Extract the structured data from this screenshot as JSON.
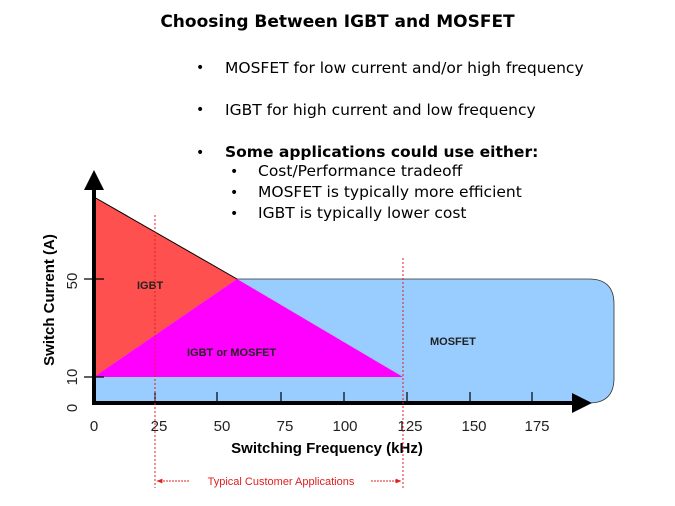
{
  "slide": {
    "title": "Choosing Between IGBT and MOSFET",
    "bullets": [
      "MOSFET for low current and/or high frequency",
      "IGBT for high current and low frequency",
      "Some applications could use either:"
    ],
    "sub_bullets": [
      "Cost/Performance tradeoff",
      "MOSFET is typically more efficient",
      "IGBT is typically lower cost"
    ],
    "bullet_glyph": "•"
  },
  "diagram": {
    "xlabel": "Switching Frequency (kHz)",
    "ylabel": "Switch Current (A)",
    "x_ticks": [
      "0",
      "25",
      "50",
      "75",
      "100",
      "125",
      "150",
      "175"
    ],
    "y_ticks": [
      "0",
      "10",
      "50"
    ],
    "regions": {
      "igbt": {
        "label": "IGBT",
        "color": "#ff5050"
      },
      "both": {
        "label": "IGBT or MOSFET",
        "color": "#ff00ff"
      },
      "mosfet": {
        "label": "MOSFET",
        "color": "#99ccff"
      }
    },
    "range_annotation": {
      "label": "Typical Customer Applications",
      "from_khz": 25,
      "to_khz": 125,
      "color": "#e02020"
    }
  }
}
